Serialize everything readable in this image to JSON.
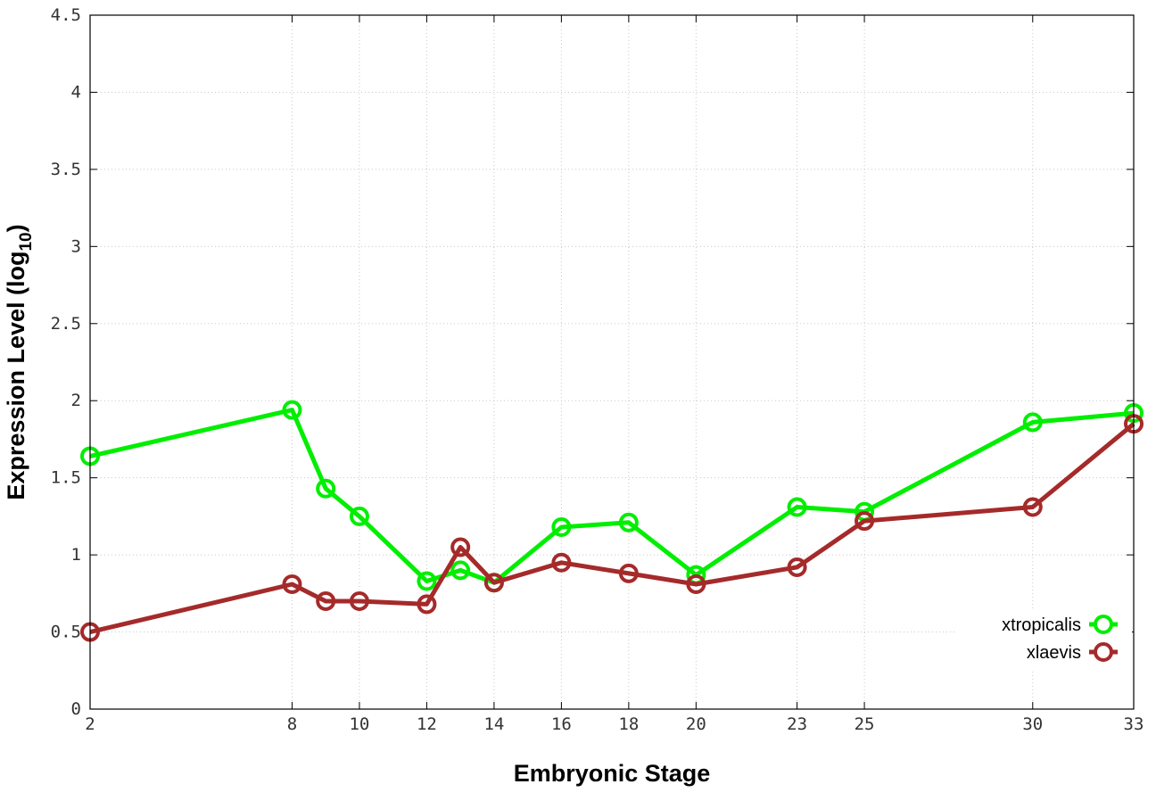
{
  "chart_data": {
    "type": "line",
    "title": "",
    "xlabel": "Embryonic Stage",
    "ylabel_main": "Expression Level (log",
    "ylabel_sub": "10",
    "ylabel_close": ")",
    "x": [
      2,
      8,
      9,
      10,
      12,
      13,
      14,
      16,
      18,
      20,
      23,
      25,
      30,
      33
    ],
    "x_tick_labels": [
      "2",
      "8",
      "10",
      "12",
      "14",
      "16",
      "18",
      "20",
      "23",
      "25",
      "30",
      "33"
    ],
    "y_tick_labels": [
      "0",
      "0.5",
      "1",
      "1.5",
      "2",
      "2.5",
      "3",
      "3.5",
      "4",
      "4.5"
    ],
    "xlim": [
      2,
      33
    ],
    "ylim": [
      0,
      4.5
    ],
    "grid": true,
    "legend_position": "bottom-right",
    "series": [
      {
        "name": "xtropicalis",
        "color": "#00ee00",
        "values": [
          1.64,
          1.94,
          1.43,
          1.25,
          0.83,
          0.9,
          0.82,
          1.18,
          1.21,
          0.87,
          1.31,
          1.28,
          1.86,
          1.92
        ]
      },
      {
        "name": "xlaevis",
        "color": "#a52a2a",
        "values": [
          0.5,
          0.81,
          0.7,
          0.7,
          0.68,
          1.05,
          0.82,
          0.95,
          0.88,
          0.81,
          0.92,
          1.22,
          1.31,
          1.85
        ]
      }
    ]
  }
}
